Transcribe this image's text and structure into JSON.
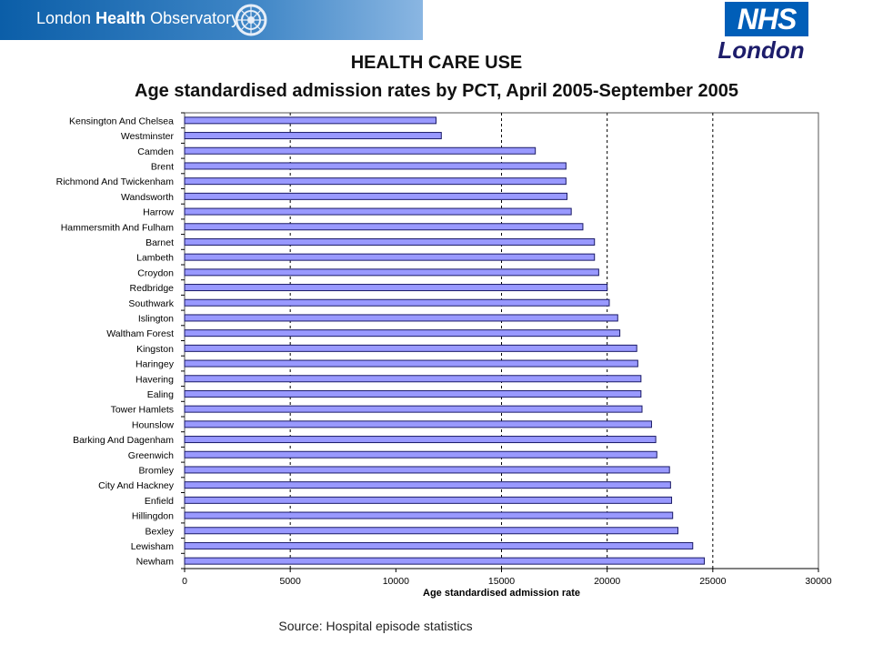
{
  "header": {
    "observatory_logo_text_a": "London ",
    "observatory_logo_text_b": "Health",
    "observatory_logo_text_c": " Observatory",
    "nhs_logo_text": "NHS",
    "nhs_region_text": "London"
  },
  "title_line1": "HEALTH CARE USE",
  "title_line2": "Age standardised admission rates by PCT, April 2005-September 2005",
  "source_note": "Source: Hospital episode statistics",
  "colors": {
    "bar_fill": "#9999ff",
    "bar_stroke": "#1a1a66",
    "brand_blue": "#005eb8"
  },
  "chart_data": {
    "type": "bar",
    "orientation": "horizontal",
    "title": "Age standardised admission rates by PCT, April 2005-September 2005",
    "xlabel": "Age standardised admission rate",
    "ylabel": "",
    "xlim": [
      0,
      30000
    ],
    "xticks": [
      0,
      5000,
      10000,
      15000,
      20000,
      25000,
      30000
    ],
    "tick_labels": [
      "0",
      "5000",
      "10000",
      "15000",
      "20000",
      "25000",
      "30000"
    ],
    "reference_lines": [
      5000,
      15000,
      20000,
      25000
    ],
    "grid": "dashed vertical lines",
    "categories": [
      "Kensington And Chelsea",
      "Westminster",
      "Camden",
      "Brent",
      "Richmond And Twickenham",
      "Wandsworth",
      "Harrow",
      "Hammersmith And Fulham",
      "Barnet",
      "Lambeth",
      "Croydon",
      "Redbridge",
      "Southwark",
      "Islington",
      "Waltham Forest",
      "Kingston",
      "Haringey",
      "Havering",
      "Ealing",
      "Tower Hamlets",
      "Hounslow",
      "Barking And Dagenham",
      "Greenwich",
      "Bromley",
      "City And Hackney",
      "Enfield",
      "Hillingdon",
      "Bexley",
      "Lewisham",
      "Newham"
    ],
    "values": [
      11900,
      12150,
      16600,
      18050,
      18050,
      18100,
      18300,
      18850,
      19400,
      19400,
      19600,
      20000,
      20100,
      20500,
      20600,
      21400,
      21450,
      21600,
      21600,
      21650,
      22100,
      22300,
      22350,
      22950,
      23000,
      23050,
      23100,
      23350,
      24050,
      24600
    ]
  }
}
